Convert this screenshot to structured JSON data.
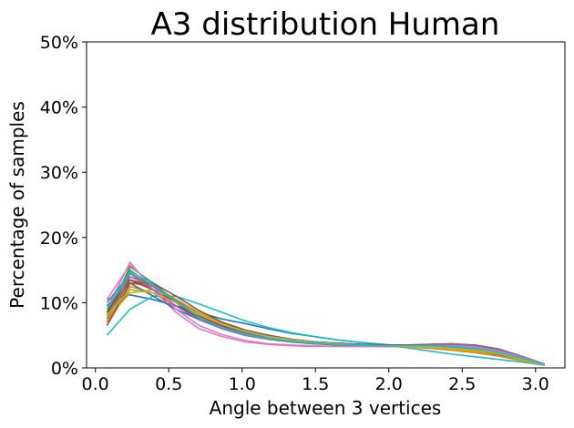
{
  "chart_data": {
    "type": "line",
    "title": "A3 distribution Human",
    "xlabel": "Angle between 3 vertices",
    "ylabel": "Percentage of samples",
    "xlim": [
      -0.06,
      3.2
    ],
    "ylim": [
      0,
      50
    ],
    "xticks": [
      0.0,
      0.5,
      1.0,
      1.5,
      2.0,
      2.5,
      3.0
    ],
    "xtick_labels": [
      "0.0",
      "0.5",
      "1.0",
      "1.5",
      "2.0",
      "2.5",
      "3.0"
    ],
    "yticks": [
      0,
      10,
      20,
      30,
      40,
      50
    ],
    "ytick_labels": [
      "0%",
      "10%",
      "20%",
      "30%",
      "40%",
      "50%"
    ],
    "grid": false,
    "x": [
      0.079,
      0.236,
      0.393,
      0.55,
      0.707,
      0.864,
      1.021,
      1.178,
      1.335,
      1.492,
      1.649,
      1.806,
      1.963,
      2.12,
      2.277,
      2.434,
      2.591,
      2.748,
      2.905,
      3.062
    ],
    "series": [
      {
        "color": "#1f77b4",
        "values": [
          10.5,
          11.2,
          10.5,
          9.5,
          8.5,
          7.5,
          6.8,
          6.0,
          5.3,
          4.8,
          4.3,
          3.9,
          3.6,
          3.3,
          3.1,
          2.9,
          2.6,
          2.0,
          1.3,
          0.5
        ]
      },
      {
        "color": "#ff7f0e",
        "values": [
          6.5,
          12.5,
          11.5,
          9.5,
          7.5,
          6.0,
          5.0,
          4.4,
          4.0,
          3.8,
          3.6,
          3.5,
          3.4,
          3.3,
          3.1,
          2.8,
          2.4,
          1.9,
          1.2,
          0.4
        ]
      },
      {
        "color": "#2ca02c",
        "values": [
          8.5,
          15.0,
          12.5,
          10.0,
          7.5,
          6.0,
          5.0,
          4.4,
          4.0,
          3.7,
          3.6,
          3.5,
          3.4,
          3.3,
          3.2,
          3.0,
          2.7,
          2.1,
          1.3,
          0.4
        ]
      },
      {
        "color": "#d62728",
        "values": [
          7.0,
          12.0,
          11.5,
          9.5,
          7.8,
          6.4,
          5.3,
          4.6,
          4.1,
          3.8,
          3.6,
          3.5,
          3.4,
          3.4,
          3.3,
          3.2,
          2.9,
          2.3,
          1.4,
          0.5
        ]
      },
      {
        "color": "#9467bd",
        "values": [
          9.0,
          14.0,
          12.5,
          10.5,
          8.0,
          6.5,
          5.4,
          4.6,
          4.1,
          3.8,
          3.6,
          3.5,
          3.4,
          3.5,
          3.6,
          3.7,
          3.4,
          2.7,
          1.6,
          0.5
        ]
      },
      {
        "color": "#8c564b",
        "values": [
          7.5,
          13.5,
          12.5,
          10.5,
          8.5,
          7.0,
          5.8,
          5.0,
          4.4,
          4.0,
          3.8,
          3.6,
          3.5,
          3.5,
          3.6,
          3.7,
          3.5,
          2.9,
          1.8,
          0.6
        ]
      },
      {
        "color": "#e377c2",
        "values": [
          9.0,
          16.2,
          12.0,
          8.5,
          6.0,
          4.8,
          4.0,
          3.6,
          3.4,
          3.3,
          3.3,
          3.3,
          3.3,
          3.3,
          3.4,
          3.5,
          3.3,
          2.7,
          1.7,
          0.6
        ]
      },
      {
        "color": "#7f7f7f",
        "values": [
          8.0,
          14.5,
          12.5,
          10.0,
          8.0,
          6.5,
          5.4,
          4.6,
          4.1,
          3.8,
          3.6,
          3.5,
          3.4,
          3.4,
          3.4,
          3.4,
          3.2,
          2.6,
          1.6,
          0.5
        ]
      },
      {
        "color": "#bcbd22",
        "values": [
          7.5,
          11.5,
          12.0,
          10.5,
          8.5,
          7.0,
          5.8,
          5.0,
          4.4,
          4.0,
          3.7,
          3.5,
          3.4,
          3.3,
          3.1,
          2.9,
          2.6,
          2.1,
          1.3,
          0.4
        ]
      },
      {
        "color": "#17becf",
        "values": [
          5.0,
          9.0,
          11.0,
          11.0,
          9.8,
          8.5,
          7.2,
          6.2,
          5.4,
          4.8,
          4.3,
          3.9,
          3.5,
          3.1,
          2.6,
          2.1,
          1.7,
          1.3,
          0.9,
          0.4
        ]
      },
      {
        "color": "#1f77b4",
        "values": [
          9.5,
          13.0,
          11.0,
          9.0,
          7.4,
          6.2,
          5.3,
          4.6,
          4.2,
          3.9,
          3.7,
          3.5,
          3.4,
          3.3,
          3.2,
          3.0,
          2.7,
          2.1,
          1.3,
          0.4
        ]
      },
      {
        "color": "#ff7f0e",
        "values": [
          7.0,
          13.0,
          12.5,
          10.5,
          8.3,
          6.8,
          5.6,
          4.8,
          4.3,
          3.9,
          3.7,
          3.5,
          3.4,
          3.2,
          3.0,
          2.7,
          2.3,
          1.8,
          1.1,
          0.4
        ]
      },
      {
        "color": "#2ca02c",
        "values": [
          8.0,
          15.5,
          13.0,
          10.2,
          7.8,
          6.2,
          5.1,
          4.4,
          4.0,
          3.7,
          3.5,
          3.4,
          3.3,
          3.3,
          3.3,
          3.3,
          3.1,
          2.5,
          1.5,
          0.5
        ]
      },
      {
        "color": "#d62728",
        "values": [
          8.5,
          13.5,
          12.0,
          10.0,
          7.9,
          6.5,
          5.4,
          4.7,
          4.2,
          3.9,
          3.7,
          3.6,
          3.5,
          3.5,
          3.5,
          3.5,
          3.2,
          2.6,
          1.6,
          0.5
        ]
      },
      {
        "color": "#9467bd",
        "values": [
          10.0,
          14.5,
          12.0,
          9.5,
          7.4,
          6.0,
          5.0,
          4.4,
          4.0,
          3.8,
          3.6,
          3.5,
          3.4,
          3.4,
          3.5,
          3.6,
          3.4,
          2.8,
          1.7,
          0.5
        ]
      },
      {
        "color": "#8c564b",
        "values": [
          6.5,
          13.0,
          13.0,
          11.0,
          8.8,
          7.0,
          5.8,
          5.0,
          4.4,
          4.0,
          3.8,
          3.6,
          3.5,
          3.4,
          3.4,
          3.4,
          3.2,
          2.6,
          1.6,
          0.5
        ]
      },
      {
        "color": "#e377c2",
        "values": [
          10.5,
          15.8,
          12.5,
          9.0,
          6.5,
          5.1,
          4.2,
          3.7,
          3.5,
          3.4,
          3.3,
          3.3,
          3.3,
          3.3,
          3.4,
          3.4,
          3.2,
          2.6,
          1.6,
          0.5
        ]
      },
      {
        "color": "#7f7f7f",
        "values": [
          7.5,
          14.0,
          12.5,
          10.3,
          8.2,
          6.6,
          5.5,
          4.7,
          4.2,
          3.9,
          3.7,
          3.5,
          3.4,
          3.3,
          3.2,
          3.1,
          2.9,
          2.3,
          1.4,
          0.4
        ]
      },
      {
        "color": "#bcbd22",
        "values": [
          8.0,
          12.0,
          11.5,
          10.0,
          8.2,
          6.7,
          5.6,
          4.8,
          4.3,
          3.9,
          3.7,
          3.5,
          3.4,
          3.3,
          3.2,
          3.0,
          2.7,
          2.2,
          1.3,
          0.4
        ]
      },
      {
        "color": "#17becf",
        "values": [
          9.0,
          14.8,
          12.8,
          10.2,
          7.8,
          6.2,
          5.2,
          4.5,
          4.1,
          3.8,
          3.6,
          3.5,
          3.4,
          3.4,
          3.4,
          3.3,
          3.0,
          2.4,
          1.5,
          0.5
        ]
      }
    ]
  }
}
